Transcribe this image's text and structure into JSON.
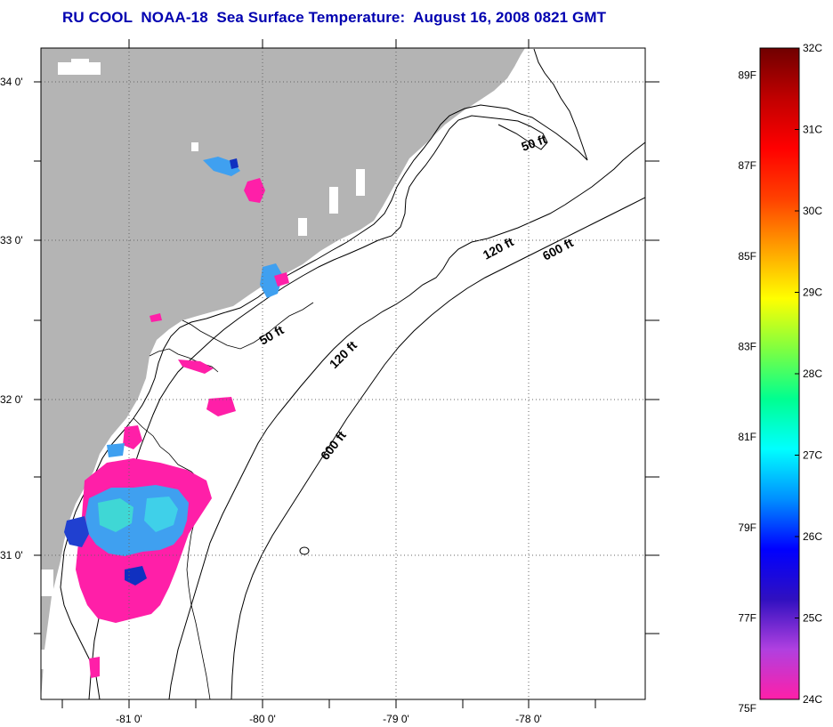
{
  "title": "RU COOL  NOAA-18  Sea Surface Temperature:  August 16, 2008 0821 GMT",
  "map": {
    "lon_range": [
      -81.5,
      -77.25
    ],
    "lat_range": [
      30.1,
      34.2
    ],
    "lat_labels": [
      "34 0'",
      "33 0'",
      "32 0'",
      "31 0'"
    ],
    "lon_labels": [
      "-81 0'",
      "-80 0'",
      "-79 0'",
      "-78 0'"
    ],
    "contour_labels": [
      {
        "id": "50-north",
        "text": "50 ft"
      },
      {
        "id": "120-north",
        "text": "120 ft"
      },
      {
        "id": "600-north",
        "text": "600 ft"
      },
      {
        "id": "50-mid",
        "text": "50 ft"
      },
      {
        "id": "120-mid",
        "text": "120 ft"
      },
      {
        "id": "600-south",
        "text": "600 ft"
      }
    ],
    "colors": {
      "land": "#b4b4b4",
      "ocean": "#ffffff",
      "coast": "#000000",
      "frame": "#000000",
      "grid": "#555555"
    }
  },
  "colorbar": {
    "celsius_labels": [
      "32C",
      "31C",
      "30C",
      "29C",
      "28C",
      "27C",
      "26C",
      "25C",
      "24C"
    ],
    "fahrenheit_labels": [
      "89F",
      "87F",
      "85F",
      "83F",
      "81F",
      "79F",
      "77F",
      "75F"
    ],
    "celsius_range": [
      24,
      32
    ],
    "stops": [
      "#ff1fa8",
      "#b040e0",
      "#3010c0",
      "#0000ff",
      "#0090ff",
      "#00ffff",
      "#00ff90",
      "#80ff40",
      "#ffff00",
      "#ffa000",
      "#ff4000",
      "#ff0000",
      "#c00000",
      "#700000"
    ]
  }
}
